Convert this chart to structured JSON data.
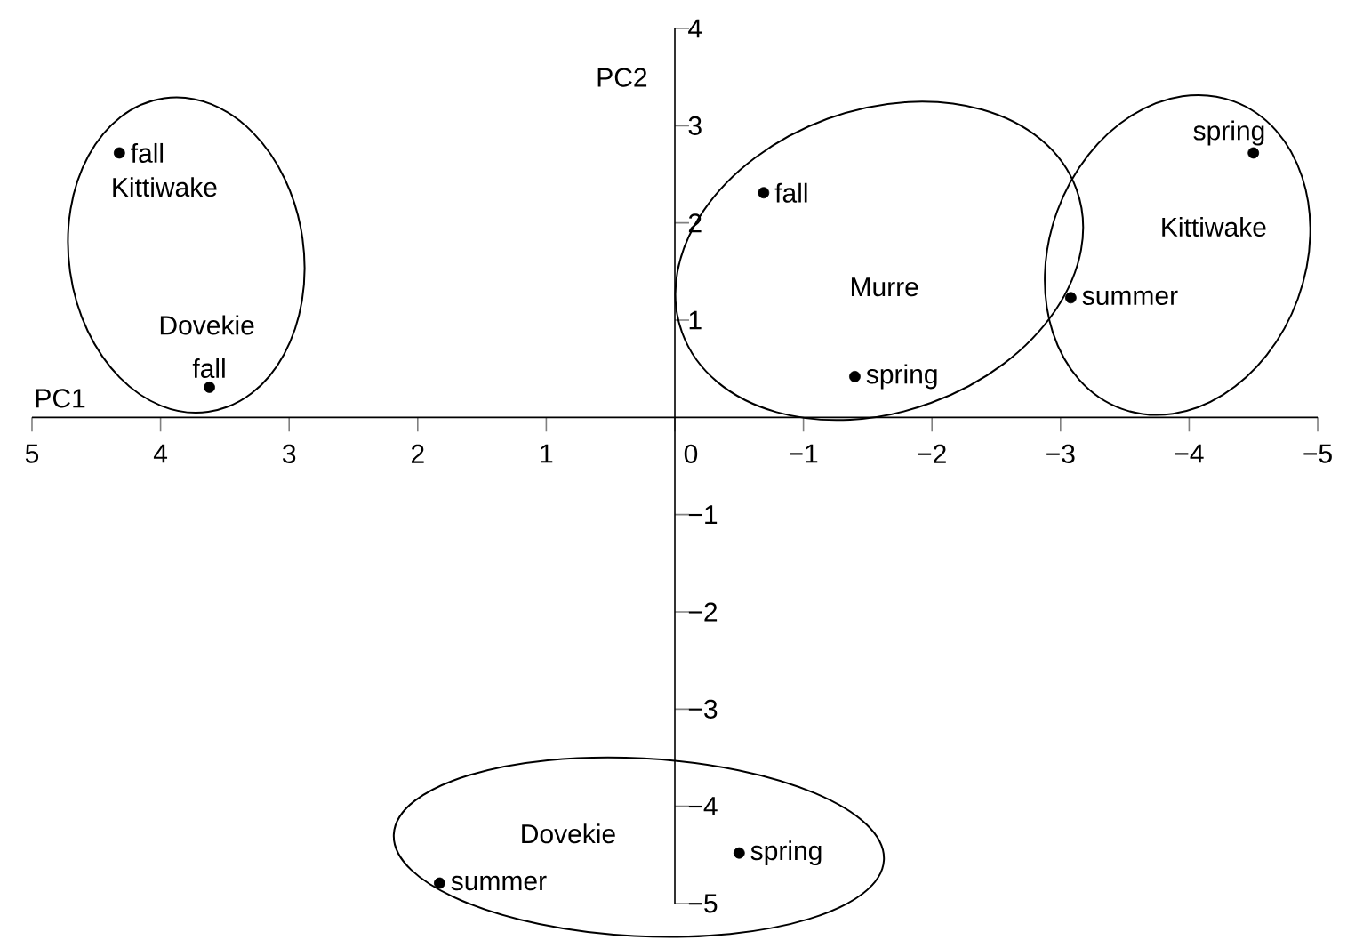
{
  "chart_data": {
    "type": "scatter",
    "xlabel": "PC1",
    "ylabel": "PC2",
    "x": [
      4.32,
      3.62,
      -0.69,
      -1.4,
      -3.08,
      -4.5,
      -0.5,
      1.83
    ],
    "series": [
      {
        "color": "#000000",
        "values": [
          2.72,
          0.31,
          2.31,
          0.42,
          1.23,
          2.72,
          -4.48,
          -4.79
        ]
      }
    ],
    "xlim": [
      5,
      -5
    ],
    "ylim": [
      -5,
      4
    ],
    "xticks": [
      5,
      4,
      3,
      2,
      1,
      0,
      {
        "value": -1,
        "label": "−1"
      },
      {
        "value": -2,
        "label": "−2"
      },
      {
        "value": -3,
        "label": "−3"
      },
      {
        "value": -4,
        "label": "−4"
      },
      {
        "value": -5,
        "label": "−5"
      }
    ],
    "yticks": [
      {
        "value": -5,
        "label": "−5"
      },
      {
        "value": -4,
        "label": "−4"
      },
      {
        "value": -3,
        "label": "−3"
      },
      {
        "value": -2,
        "label": "−2"
      },
      {
        "value": -1,
        "label": "−1"
      },
      1,
      2,
      3,
      4
    ],
    "grid": false,
    "annotations": [
      {
        "text": "fall",
        "x": 4.32,
        "y": 2.72
      },
      {
        "text": "fall",
        "x": 3.62,
        "y": 0.31
      },
      {
        "text": "fall",
        "x": -0.69,
        "y": 2.31
      },
      {
        "text": "spring",
        "x": -1.4,
        "y": 0.42
      },
      {
        "text": "summer",
        "x": -3.08,
        "y": 1.23
      },
      {
        "text": "spring",
        "x": -4.5,
        "y": 2.72
      },
      {
        "text": "spring",
        "x": -0.5,
        "y": -4.48
      },
      {
        "text": "summer",
        "x": 1.83,
        "y": -4.79
      },
      "Kittiwake",
      "Dovekie",
      "Murre",
      "Kittiwake",
      "Dovekie"
    ]
  }
}
